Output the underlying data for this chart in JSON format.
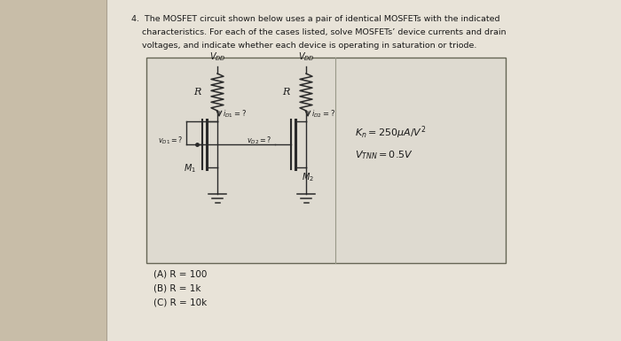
{
  "bg_color": "#c8bda8",
  "page_color": "#e8e3d8",
  "box_color": "#dedad0",
  "text_color": "#1a1a1a",
  "wire_color": "#2a2a2a",
  "line1": "4.  The MOSFET circuit shown below uses a pair of identical MOSFETs with the indicated",
  "line2": "    characteristics. For each of the cases listed, solve MOSFETs’ device currents and drain",
  "line3": "    voltages, and indicate whether each device is operating in saturation or triode.",
  "param1": "$K_n = 250\\mu A/ V^2$",
  "param2": "$V_{TNN} = 0.5V$",
  "cases": [
    "(A) R = 100",
    "(B) R = 1k",
    "(C) R = 10k"
  ]
}
